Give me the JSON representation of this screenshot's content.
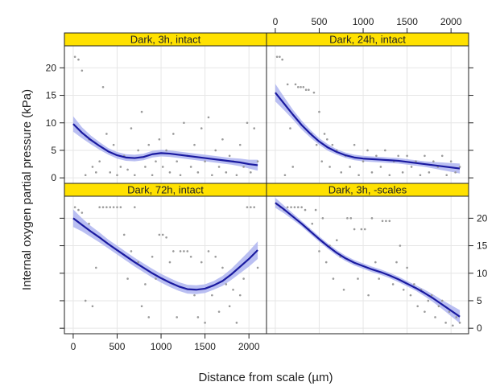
{
  "chart_data": {
    "type": "scatter",
    "layout": "2x2 trellis panels with points and smoothed fit lines with confidence bands",
    "xlabel": "Distance from scale (µm)",
    "ylabel": "Internal oxygen partial pressure (kPa)",
    "xlim": [
      -100,
      2200
    ],
    "ylim": [
      -1,
      24
    ],
    "x_ticks": [
      0,
      500,
      1000,
      1500,
      2000
    ],
    "y_ticks": [
      0,
      5,
      10,
      15,
      20
    ],
    "grid": true,
    "colors": {
      "strip": "#ffe100",
      "line": "#1a1aa0",
      "band": "#aeb4f0",
      "points": "#9a9a9a",
      "grid": "#e6e6e6"
    },
    "panels": [
      {
        "label": "Dark, 3h, intact",
        "fit": {
          "x": [
            0,
            100,
            200,
            300,
            400,
            500,
            600,
            700,
            800,
            900,
            1000,
            1100,
            1200,
            1300,
            1400,
            1500,
            1600,
            1700,
            1800,
            1900,
            2000,
            2100
          ],
          "y": [
            9.8,
            8.2,
            6.9,
            5.8,
            4.8,
            4.1,
            3.7,
            3.6,
            3.8,
            4.3,
            4.5,
            4.4,
            4.2,
            4.0,
            3.8,
            3.6,
            3.4,
            3.2,
            3.0,
            2.8,
            2.5,
            2.3
          ],
          "band": [
            1.4,
            1.0,
            0.8,
            0.7,
            0.6,
            0.6,
            0.6,
            0.6,
            0.6,
            0.6,
            0.6,
            0.6,
            0.6,
            0.6,
            0.6,
            0.6,
            0.6,
            0.6,
            0.6,
            0.7,
            0.8,
            1.0
          ]
        },
        "points": {
          "x": [
            20,
            60,
            100,
            140,
            180,
            220,
            260,
            300,
            340,
            380,
            420,
            460,
            500,
            540,
            580,
            620,
            660,
            700,
            740,
            780,
            820,
            860,
            900,
            940,
            980,
            1020,
            1060,
            1100,
            1140,
            1180,
            1220,
            1260,
            1300,
            1340,
            1380,
            1420,
            1460,
            1500,
            1540,
            1580,
            1620,
            1660,
            1700,
            1740,
            1780,
            1820,
            1860,
            1900,
            1940,
            1980,
            2020,
            2060,
            2100
          ],
          "y": [
            22,
            21.5,
            19.5,
            0.5,
            7,
            2,
            1,
            3,
            16.5,
            8,
            1,
            6,
            0.5,
            2,
            4,
            1.5,
            9,
            0.5,
            5,
            12,
            2,
            6,
            0.5,
            3,
            7,
            2,
            5,
            1,
            8,
            3,
            0.5,
            10,
            4,
            2,
            6,
            1,
            9,
            3,
            11,
            0.5,
            5,
            2,
            7,
            1,
            4,
            3,
            0.5,
            6,
            2,
            10,
            1,
            9,
            3
          ]
        }
      },
      {
        "label": "Dark, 24h, intact",
        "fit": {
          "x": [
            0,
            100,
            200,
            300,
            400,
            500,
            600,
            700,
            800,
            900,
            1000,
            1100,
            1200,
            1300,
            1400,
            1500,
            1600,
            1700,
            1800,
            1900,
            2000,
            2100
          ],
          "y": [
            15.5,
            13.5,
            11.5,
            9.6,
            8.0,
            6.6,
            5.5,
            4.7,
            4.1,
            3.7,
            3.5,
            3.4,
            3.3,
            3.2,
            3.1,
            2.9,
            2.7,
            2.5,
            2.3,
            2.1,
            1.9,
            1.7
          ],
          "band": [
            1.6,
            1.2,
            0.9,
            0.8,
            0.7,
            0.6,
            0.6,
            0.5,
            0.5,
            0.5,
            0.5,
            0.5,
            0.5,
            0.5,
            0.5,
            0.5,
            0.5,
            0.5,
            0.6,
            0.7,
            0.8,
            0.9
          ]
        },
        "points": {
          "x": [
            20,
            50,
            80,
            110,
            140,
            170,
            200,
            230,
            260,
            290,
            320,
            350,
            380,
            410,
            440,
            470,
            500,
            530,
            560,
            590,
            620,
            650,
            700,
            750,
            800,
            850,
            900,
            950,
            1000,
            1050,
            1100,
            1150,
            1200,
            1250,
            1300,
            1350,
            1400,
            1450,
            1500,
            1550,
            1600,
            1650,
            1700,
            1750,
            1800,
            1850,
            1900,
            1950,
            2000,
            2050,
            2100
          ],
          "y": [
            22,
            22,
            21.5,
            0.5,
            17,
            9,
            2,
            17,
            16.5,
            16.5,
            16.5,
            16,
            16,
            8,
            15.5,
            6,
            12,
            3,
            8,
            7,
            2,
            6,
            5,
            1,
            4,
            2,
            6,
            0.5,
            3,
            5,
            1,
            4,
            2,
            5,
            0.5,
            3,
            4,
            1,
            4,
            2,
            3,
            0.5,
            4,
            1,
            3,
            2,
            4,
            0.5,
            3,
            1,
            2
          ]
        }
      },
      {
        "label": "Dark, 72h, intact",
        "fit": {
          "x": [
            0,
            100,
            200,
            300,
            400,
            500,
            600,
            700,
            800,
            900,
            1000,
            1100,
            1200,
            1300,
            1400,
            1500,
            1600,
            1700,
            1800,
            1900,
            2000,
            2100
          ],
          "y": [
            20.0,
            18.8,
            17.6,
            16.5,
            15.3,
            14.2,
            13.1,
            12.0,
            11.0,
            10.0,
            9.1,
            8.3,
            7.6,
            7.1,
            7.0,
            7.2,
            7.8,
            8.6,
            9.8,
            11.2,
            12.6,
            14.2
          ],
          "band": [
            1.6,
            1.2,
            1.0,
            0.9,
            0.8,
            0.8,
            0.8,
            0.8,
            0.8,
            0.8,
            0.8,
            0.8,
            0.8,
            0.8,
            0.8,
            0.8,
            0.8,
            0.9,
            1.0,
            1.2,
            1.4,
            1.6
          ]
        },
        "points": {
          "x": [
            20,
            60,
            100,
            140,
            180,
            220,
            260,
            300,
            340,
            380,
            420,
            460,
            500,
            540,
            580,
            620,
            660,
            700,
            740,
            780,
            820,
            860,
            900,
            940,
            980,
            1020,
            1060,
            1100,
            1140,
            1180,
            1220,
            1260,
            1300,
            1340,
            1380,
            1420,
            1460,
            1500,
            1540,
            1580,
            1620,
            1660,
            1700,
            1740,
            1780,
            1820,
            1860,
            1900,
            1940,
            1980,
            2020,
            2060,
            2100
          ],
          "y": [
            22,
            21.5,
            21,
            5,
            19,
            4,
            11,
            22,
            22,
            22,
            22,
            22,
            22,
            22,
            17,
            9,
            14,
            22,
            12,
            4,
            8,
            2,
            13,
            9,
            17,
            17,
            16.5,
            12,
            14,
            2,
            14,
            14,
            14,
            13,
            6,
            2,
            12,
            1,
            14,
            6,
            13,
            3,
            11,
            8,
            4,
            7,
            1,
            6,
            9,
            22,
            22,
            22,
            11
          ]
        }
      },
      {
        "label": "Dark, 3h, -scales",
        "fit": {
          "x": [
            0,
            100,
            200,
            300,
            400,
            500,
            600,
            700,
            800,
            900,
            1000,
            1100,
            1200,
            1300,
            1400,
            1500,
            1600,
            1700,
            1800,
            1900,
            2000,
            2100
          ],
          "y": [
            22.8,
            21.6,
            20.3,
            19.0,
            17.6,
            16.2,
            14.9,
            13.7,
            12.7,
            11.9,
            11.3,
            10.7,
            10.2,
            9.6,
            8.9,
            8.1,
            7.3,
            6.4,
            5.4,
            4.3,
            3.2,
            2.1
          ],
          "band": [
            0.9,
            0.7,
            0.6,
            0.5,
            0.5,
            0.5,
            0.5,
            0.5,
            0.5,
            0.5,
            0.5,
            0.5,
            0.5,
            0.5,
            0.5,
            0.5,
            0.5,
            0.6,
            0.7,
            0.8,
            1.0,
            1.2
          ]
        },
        "points": {
          "x": [
            20,
            60,
            100,
            140,
            180,
            220,
            260,
            300,
            340,
            380,
            420,
            460,
            500,
            540,
            580,
            620,
            660,
            700,
            740,
            780,
            820,
            860,
            900,
            940,
            980,
            1020,
            1060,
            1100,
            1140,
            1180,
            1220,
            1260,
            1300,
            1340,
            1380,
            1420,
            1460,
            1500,
            1540,
            1580,
            1620,
            1660,
            1700,
            1740,
            1780,
            1820,
            1860,
            1900,
            1940,
            1980,
            2020,
            2060,
            2100
          ],
          "y": [
            22.5,
            22,
            21.5,
            22,
            22,
            22,
            22,
            22,
            21.5,
            18,
            19,
            21.5,
            14,
            20,
            12,
            15,
            9,
            16,
            13,
            7,
            20,
            20,
            18,
            9,
            18,
            18,
            6,
            20,
            12,
            9,
            19.5,
            19.5,
            19.5,
            8,
            12,
            15,
            7,
            11,
            6,
            8,
            4,
            7,
            3,
            5,
            6,
            2,
            4,
            5,
            1,
            3,
            0.5,
            2,
            1
          ]
        }
      }
    ]
  }
}
